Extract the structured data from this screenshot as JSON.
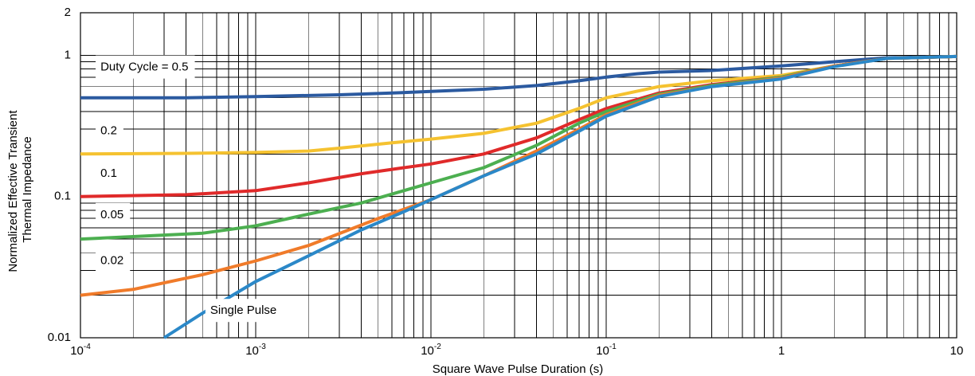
{
  "chart_data": {
    "type": "line",
    "title": "",
    "xlabel": "Square Wave Pulse Duration (s)",
    "ylabel_lines": [
      "Normalized Effective Transient",
      "Thermal Impedance"
    ],
    "xscale": "log",
    "yscale": "log",
    "xlim": [
      0.0001,
      10
    ],
    "ylim": [
      0.01,
      2
    ],
    "grid": true,
    "x_ticks": [
      {
        "base": "10",
        "exp": "-4"
      },
      {
        "base": "10",
        "exp": "-3"
      },
      {
        "base": "10",
        "exp": "-2"
      },
      {
        "base": "10",
        "exp": "-1"
      },
      {
        "base": "1",
        "exp": ""
      },
      {
        "base": "10",
        "exp": ""
      }
    ],
    "y_ticks": [
      "0.01",
      "0.1",
      "1",
      "2"
    ],
    "series": [
      {
        "name": "Duty Cycle = 0.5",
        "color": "#2b5aa0",
        "x": [
          0.0001,
          0.0004,
          0.001,
          0.003,
          0.006,
          0.01,
          0.02,
          0.04,
          0.07,
          0.1,
          0.15,
          0.2,
          0.4,
          1,
          2,
          4,
          10
        ],
        "y": [
          0.5,
          0.5,
          0.51,
          0.525,
          0.54,
          0.555,
          0.575,
          0.61,
          0.66,
          0.7,
          0.74,
          0.76,
          0.78,
          0.84,
          0.9,
          0.96,
          0.98
        ]
      },
      {
        "name": "0.2",
        "color": "#f5c230",
        "x": [
          0.0001,
          0.0004,
          0.001,
          0.002,
          0.003,
          0.006,
          0.01,
          0.02,
          0.04,
          0.07,
          0.1,
          0.2,
          0.4,
          1,
          2,
          4,
          10
        ],
        "y": [
          0.2,
          0.202,
          0.205,
          0.21,
          0.22,
          0.24,
          0.255,
          0.28,
          0.33,
          0.42,
          0.5,
          0.6,
          0.66,
          0.72,
          0.84,
          0.95,
          0.98
        ]
      },
      {
        "name": "0.1",
        "color": "#e02a2a",
        "x": [
          0.0001,
          0.0004,
          0.001,
          0.002,
          0.004,
          0.007,
          0.01,
          0.02,
          0.04,
          0.07,
          0.1,
          0.2,
          0.4,
          1,
          2,
          4,
          10
        ],
        "y": [
          0.1,
          0.103,
          0.11,
          0.125,
          0.145,
          0.16,
          0.17,
          0.2,
          0.26,
          0.35,
          0.42,
          0.54,
          0.62,
          0.7,
          0.84,
          0.95,
          0.98
        ]
      },
      {
        "name": "0.05",
        "color": "#4caf50",
        "x": [
          0.0001,
          0.0002,
          0.0005,
          0.001,
          0.002,
          0.004,
          0.007,
          0.01,
          0.02,
          0.04,
          0.07,
          0.1,
          0.2,
          0.4,
          1,
          2,
          4,
          10
        ],
        "y": [
          0.05,
          0.052,
          0.055,
          0.062,
          0.075,
          0.09,
          0.11,
          0.125,
          0.16,
          0.23,
          0.33,
          0.4,
          0.53,
          0.61,
          0.7,
          0.84,
          0.95,
          0.98
        ]
      },
      {
        "name": "0.02",
        "color": "#f07b2a",
        "x": [
          0.0001,
          0.0002,
          0.0005,
          0.001,
          0.002,
          0.005,
          0.01,
          0.02,
          0.04,
          0.07,
          0.1,
          0.2,
          0.4,
          1,
          2,
          4,
          10
        ],
        "y": [
          0.02,
          0.022,
          0.028,
          0.035,
          0.045,
          0.07,
          0.095,
          0.14,
          0.21,
          0.3,
          0.38,
          0.52,
          0.6,
          0.69,
          0.84,
          0.95,
          0.98
        ]
      },
      {
        "name": "Single Pulse",
        "color": "#2b88c8",
        "x": [
          0.0003,
          0.0005,
          0.001,
          0.002,
          0.004,
          0.007,
          0.01,
          0.02,
          0.04,
          0.07,
          0.1,
          0.2,
          0.4,
          1,
          2,
          4,
          10
        ],
        "y": [
          0.01,
          0.015,
          0.025,
          0.038,
          0.058,
          0.078,
          0.095,
          0.14,
          0.2,
          0.29,
          0.37,
          0.51,
          0.6,
          0.68,
          0.83,
          0.95,
          0.98
        ]
      }
    ],
    "annotations": [
      {
        "text": "Duty Cycle = 0.5",
        "x": 0.00013,
        "y": 0.82
      },
      {
        "text": "0.2",
        "x": 0.00013,
        "y": 0.29
      },
      {
        "text": "0.1",
        "x": 0.00013,
        "y": 0.145
      },
      {
        "text": "0.05",
        "x": 0.00013,
        "y": 0.074
      },
      {
        "text": "0.02",
        "x": 0.00013,
        "y": 0.035
      },
      {
        "text": "Single Pulse",
        "x": 0.00055,
        "y": 0.0155
      }
    ]
  }
}
